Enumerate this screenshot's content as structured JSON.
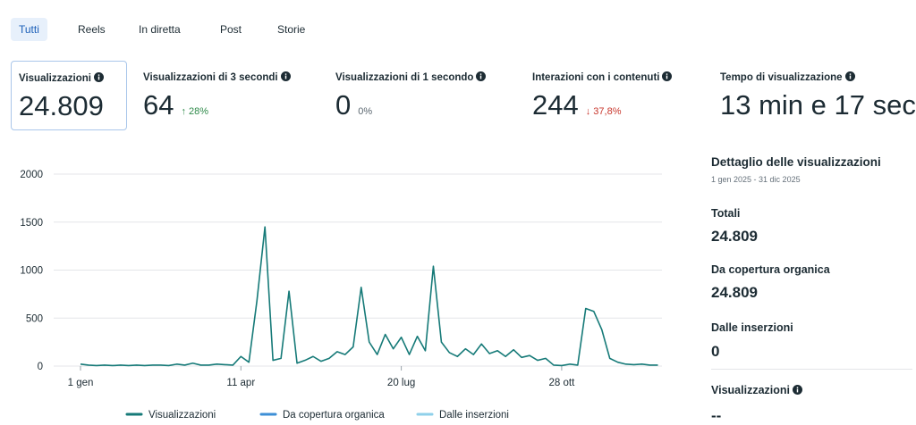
{
  "tabs": [
    "Tutti",
    "Reels",
    "In diretta",
    "Post",
    "Storie"
  ],
  "selected_tab": 0,
  "metrics": [
    {
      "label": "Visualizzazioni",
      "value": "24.809"
    },
    {
      "label": "Visualizzazioni di 3 secondi",
      "value": "64",
      "change": "↑ 28%",
      "trend": "up"
    },
    {
      "label": "Visualizzazioni di 1 secondo",
      "value": "0",
      "change": "0%",
      "trend": "flat"
    },
    {
      "label": "Interazioni con i contenuti",
      "value": "244",
      "change": "↓ 37,8%",
      "trend": "down"
    },
    {
      "label": "Tempo di visualizzazione",
      "value": "13 min e 17 sec"
    }
  ],
  "chart_data": {
    "type": "line",
    "categories": [
      "1 gen",
      null,
      null,
      null,
      null,
      null,
      null,
      null,
      null,
      null,
      null,
      null,
      null,
      null,
      null,
      null,
      null,
      null,
      null,
      null,
      "11 apr",
      null,
      null,
      null,
      null,
      null,
      null,
      null,
      null,
      null,
      null,
      null,
      null,
      null,
      null,
      null,
      null,
      null,
      null,
      null,
      "20 lug",
      null,
      null,
      null,
      null,
      null,
      null,
      null,
      null,
      null,
      null,
      null,
      null,
      null,
      null,
      null,
      null,
      null,
      null,
      null,
      "28 ott",
      null,
      null,
      null,
      null,
      null,
      null,
      null,
      null,
      null,
      null,
      null,
      null
    ],
    "series": [
      {
        "name": "Visualizzazioni",
        "color": "#167a78",
        "values": [
          20,
          10,
          5,
          10,
          5,
          10,
          5,
          10,
          5,
          10,
          10,
          5,
          20,
          10,
          30,
          10,
          10,
          20,
          15,
          10,
          100,
          40,
          680,
          1450,
          60,
          80,
          780,
          30,
          60,
          100,
          50,
          80,
          150,
          120,
          200,
          820,
          250,
          120,
          330,
          180,
          300,
          120,
          310,
          160,
          1040,
          250,
          140,
          100,
          180,
          120,
          230,
          130,
          160,
          100,
          170,
          90,
          110,
          60,
          80,
          10,
          5,
          20,
          10,
          600,
          570,
          380,
          80,
          40,
          20,
          15,
          20,
          10,
          10
        ]
      }
    ],
    "legend": [
      {
        "name": "Visualizzazioni",
        "color": "#167a78"
      },
      {
        "name": "Da copertura organica",
        "color": "#3d8fd6"
      },
      {
        "name": "Dalle inserzioni",
        "color": "#8fd0ea"
      }
    ],
    "ylim": [
      0,
      2000
    ],
    "yticks": [
      0,
      500,
      1000,
      1500,
      2000
    ],
    "grid": true
  },
  "panel": {
    "title": "Dettaglio delle visualizzazioni",
    "date_range": "1 gen 2025 - 31 dic 2025",
    "items": [
      {
        "label": "Totali",
        "value": "24.809"
      },
      {
        "label": "Da copertura organica",
        "value": "24.809"
      },
      {
        "label": "Dalle inserzioni",
        "value": "0"
      }
    ],
    "footer_label": "Visualizzazioni",
    "footer_value": "--"
  }
}
